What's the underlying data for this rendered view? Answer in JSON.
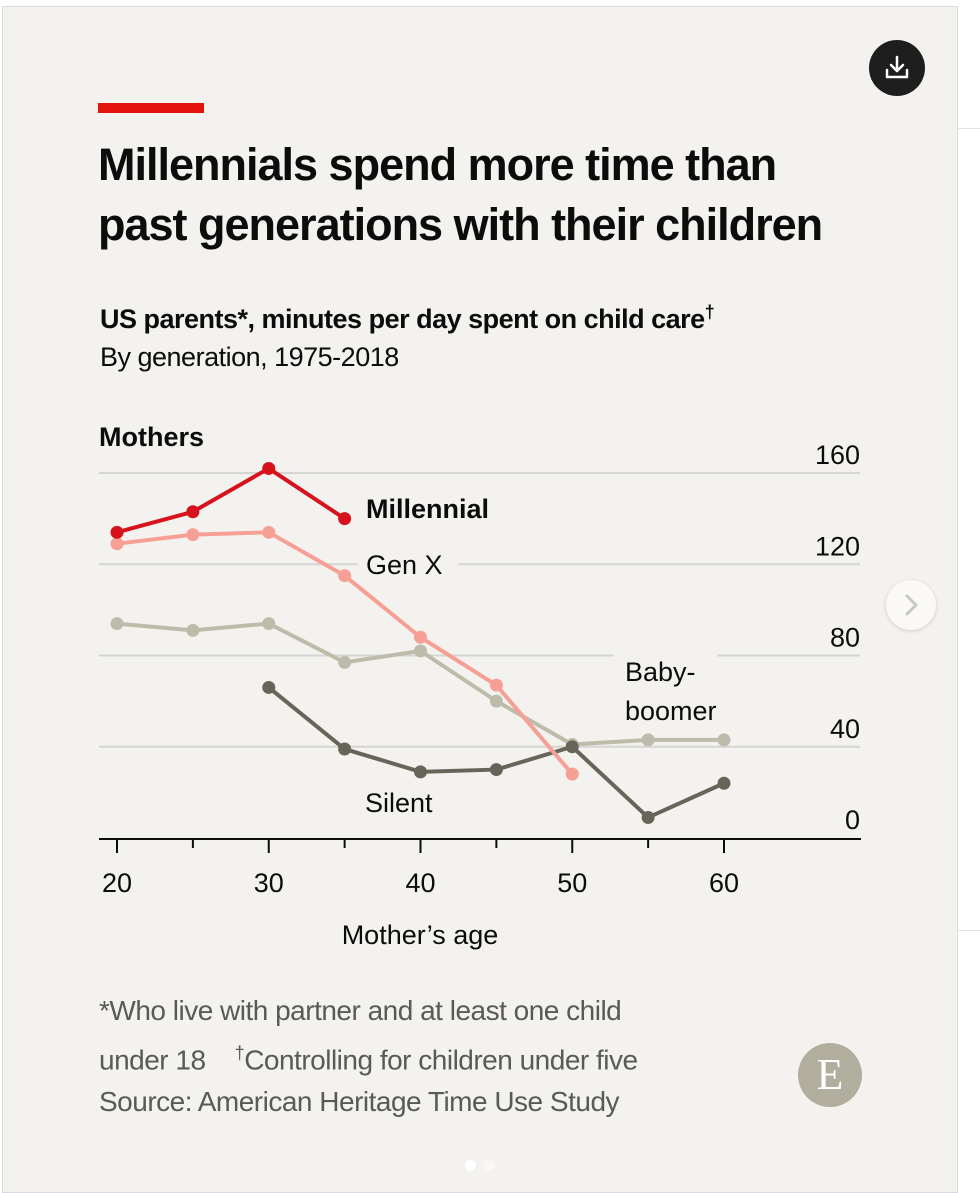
{
  "header": {
    "title": "Millennials spend more time than past generations with their children",
    "title_line1": "Millennials spend more time than",
    "title_line2": "past generations with their children",
    "subtitle": "US parents*, minutes per day spent on child care",
    "subtitle_mark": "†",
    "subtitle2": "By generation, 1975-2018",
    "accent_color": "#e3120b"
  },
  "buttons": {
    "download_icon": "download-icon",
    "next_icon": "chevron-right-icon"
  },
  "footer": {
    "note1": "*Who live with partner and at least one child",
    "note2_a": "under 18",
    "note2_mark": "†",
    "note2_b": "Controlling for children under five",
    "source": "Source: American Heritage Time Use Study",
    "logo_letter": "E"
  },
  "pagination": {
    "total": 2,
    "active": 0
  },
  "chart_data": {
    "type": "line",
    "title": "Mothers",
    "xlabel": "Mother’s age",
    "ylabel": "",
    "xlim": [
      19,
      69
    ],
    "ylim": [
      0,
      160
    ],
    "x_ticks_major": [
      20,
      30,
      40,
      50,
      60
    ],
    "x_ticks_minor": [
      25,
      35,
      45,
      55
    ],
    "y_ticks": [
      0,
      40,
      80,
      120,
      160
    ],
    "y_axis_side": "right",
    "grid": true,
    "legend": "inline-labels",
    "series": [
      {
        "name": "Baby-boomer",
        "label_line1": "Baby-",
        "label_line2": "boomer",
        "color": "#bdbcab",
        "x": [
          20,
          25,
          30,
          35,
          40,
          45,
          50,
          55,
          60
        ],
        "values": [
          94,
          91,
          94,
          77,
          82,
          60,
          41,
          43,
          43
        ]
      },
      {
        "name": "Silent",
        "label": "Silent",
        "color": "#67655a",
        "x": [
          30,
          35,
          40,
          45,
          50,
          55,
          60
        ],
        "values": [
          66,
          39,
          29,
          30,
          40,
          9,
          24
        ]
      },
      {
        "name": "Gen X",
        "label": "Gen X",
        "color": "#f6a095",
        "x": [
          20,
          25,
          30,
          35,
          40,
          45,
          50
        ],
        "values": [
          129,
          133,
          134,
          115,
          88,
          67,
          28
        ]
      },
      {
        "name": "Millennial",
        "label": "Millennial",
        "color": "#d7121c",
        "x": [
          20,
          25,
          30,
          35
        ],
        "values": [
          134,
          143,
          162,
          140
        ]
      }
    ]
  }
}
